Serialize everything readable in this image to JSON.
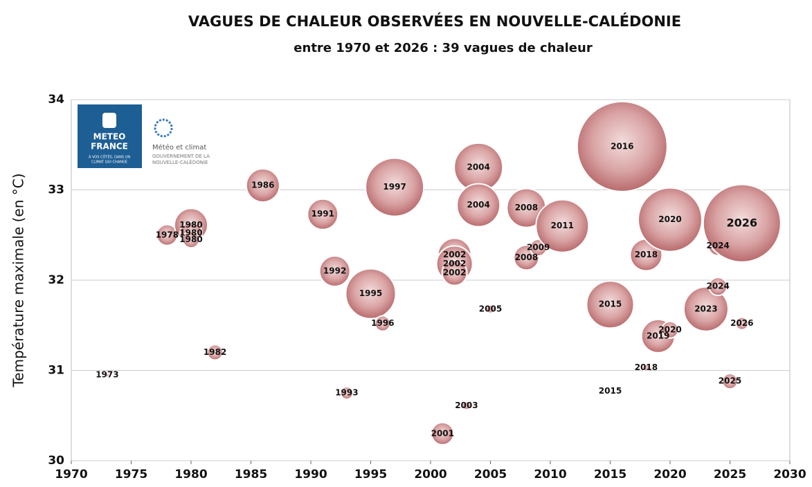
{
  "chart_data": {
    "type": "bubble",
    "title": "VAGUES DE CHALEUR OBSERVÉES EN NOUVELLE-CALÉDONIE",
    "subtitle": "entre 1970 et 2026 : 39 vagues de chaleur",
    "y_label": "Température maximale (en °C)",
    "logos": {
      "meteo_france": [
        "METEO",
        "FRANCE",
        "À VOS CÔTÉS, DANS UN",
        "CLIMAT QUI CHANGE"
      ],
      "gouvernement": [
        "Météo et climat",
        "GOUVERNEMENT DE LA",
        "NOUVELLE-CALÉDONIE"
      ]
    },
    "xlim": [
      1970,
      2030
    ],
    "xticks": [
      1970,
      1975,
      1980,
      1985,
      1990,
      1995,
      2000,
      2005,
      2010,
      2015,
      2020,
      2025,
      2030
    ],
    "ylim": [
      30,
      34
    ],
    "yticks": [
      30,
      31,
      32,
      33,
      34
    ],
    "grid": true,
    "color": "#bf6f72",
    "x": [
      1973,
      1978,
      1980,
      1980,
      1980,
      1982,
      1986,
      1991,
      1992,
      1993,
      1995,
      1996,
      1997,
      2001,
      2002,
      2002,
      2002,
      2003,
      2004,
      2004,
      2005,
      2008,
      2008,
      2009,
      2011,
      2015,
      2015,
      2016,
      2018,
      2018,
      2019,
      2020,
      2020,
      2023,
      2024,
      2024,
      2025,
      2026,
      2026
    ],
    "y": [
      30.95,
      32.5,
      32.61,
      32.52,
      32.45,
      31.2,
      33.05,
      32.73,
      32.1,
      30.75,
      31.85,
      31.52,
      33.03,
      30.3,
      32.28,
      32.18,
      32.08,
      30.61,
      33.25,
      32.83,
      31.68,
      32.8,
      32.25,
      32.36,
      32.6,
      31.73,
      30.77,
      33.48,
      32.28,
      31.03,
      31.38,
      32.67,
      31.45,
      31.68,
      32.38,
      31.93,
      30.88,
      32.63,
      31.52
    ],
    "sizes": [
      3,
      15,
      24,
      16,
      12,
      11,
      24,
      22,
      22,
      9,
      36,
      11,
      42,
      16,
      24,
      26,
      18,
      6,
      35,
      31,
      6,
      28,
      18,
      12,
      38,
      34,
      2,
      65,
      23,
      5,
      24,
      46,
      12,
      32,
      14,
      13,
      11,
      56,
      9
    ],
    "label_colors": [
      "#111",
      "#111",
      "#111",
      "#111",
      "#111",
      "#111",
      "#111",
      "#111",
      "#111",
      "#111",
      "#111",
      "#111",
      "#111",
      "#111",
      "#111",
      "#111",
      "#111",
      "#111",
      "#111",
      "#111",
      "#111",
      "#111",
      "#111",
      "#111",
      "#111",
      "#111",
      "#111",
      "#111",
      "#111",
      "#111",
      "#111",
      "#111",
      "#111",
      "#111",
      "#111",
      "#111",
      "#111",
      "#c0282d",
      "#111"
    ]
  }
}
